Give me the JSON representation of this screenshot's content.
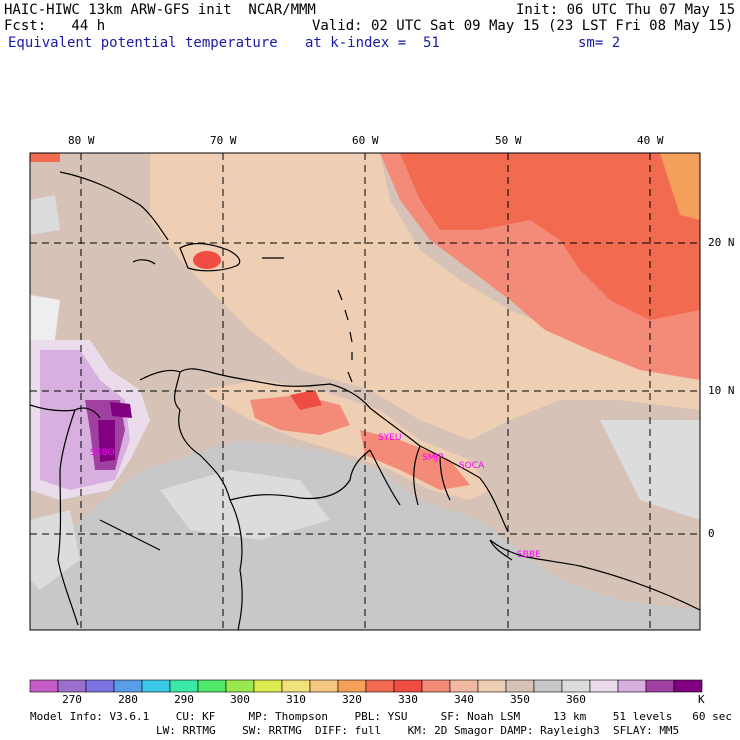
{
  "header": {
    "line1_left": "HAIC-HIWC 13km ARW-GFS init  NCAR/MMM",
    "line1_right": "Init: 06 UTC Thu 07 May 15",
    "line2_left": "Fcst:   44 h",
    "line2_right": "Valid: 02 UTC Sat 09 May 15 (23 LST Fri 08 May 15)",
    "line3_field": "Equivalent potential temperature",
    "line3_level": "at k-index =  51",
    "line3_smooth": "sm= 2"
  },
  "map": {
    "lon_labels": [
      "80 W",
      "70 W",
      "60 W",
      "50 W",
      "40 W"
    ],
    "lat_labels": [
      "20 N",
      "10 N",
      "0"
    ],
    "stations": [
      "SKBO",
      "SYEU",
      "SMJP",
      "SOCA",
      "SBBE"
    ]
  },
  "colorbar": {
    "colors": [
      "#c75bc7",
      "#9b6fcb",
      "#7c73e0",
      "#5b9ee8",
      "#3cc8e8",
      "#3ce8a8",
      "#4fe86a",
      "#9ae84f",
      "#dceb4f",
      "#f0e27a",
      "#f5c882",
      "#f5a05a",
      "#f26b50",
      "#ef4c44",
      "#f48a78",
      "#f2b8a0",
      "#efcfb4",
      "#d6c2b6",
      "#c8c8c8",
      "#dcdcdc",
      "#eadcea",
      "#d8b0e0",
      "#a040a0",
      "#800080"
    ],
    "labels": [
      "270",
      "280",
      "290",
      "300",
      "310",
      "320",
      "330",
      "340",
      "350",
      "360"
    ],
    "unit": "K"
  },
  "footer": {
    "line1": "Model Info: V3.6.1    CU: KF     MP: Thompson    PBL: YSU     SF: Noah LSM     13 km    51 levels   60 sec",
    "line2": "LW: RRTMG    SW: RRTMG  DIFF: full    KM: 2D Smagor DAMP: Rayleigh3  SFLAY: MM5"
  }
}
